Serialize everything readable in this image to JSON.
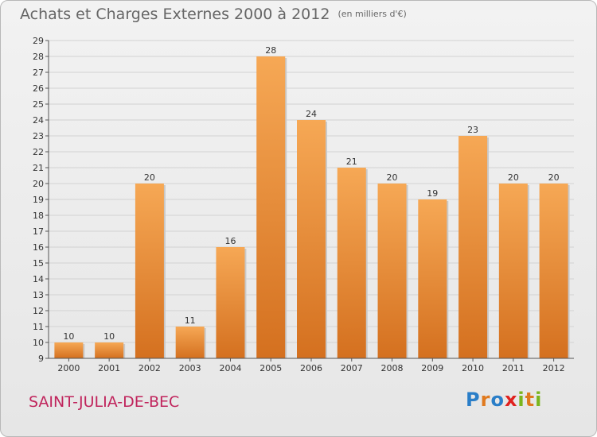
{
  "title": "Achats et Charges Externes 2000 à 2012",
  "subtitle": "(en milliers d'€)",
  "place": "SAINT-JULIA-DE-BEC",
  "logo": {
    "letters": [
      {
        "ch": "P",
        "color": "#2a7ec8"
      },
      {
        "ch": "r",
        "color": "#e07a1f"
      },
      {
        "ch": "o",
        "color": "#2a7ec8"
      },
      {
        "ch": "x",
        "color": "#e0221f"
      },
      {
        "ch": "i",
        "color": "#7ab51d"
      },
      {
        "ch": "t",
        "color": "#e07a1f"
      },
      {
        "ch": "i",
        "color": "#7ab51d"
      }
    ]
  },
  "colors": {
    "bar_top": "#f6a855",
    "bar_bottom": "#d4701f",
    "grid": "#d2d2d2"
  },
  "chart_data": {
    "type": "bar",
    "categories": [
      "2000",
      "2001",
      "2002",
      "2003",
      "2004",
      "2005",
      "2006",
      "2007",
      "2008",
      "2009",
      "2010",
      "2011",
      "2012"
    ],
    "values": [
      10,
      10,
      20,
      11,
      16,
      28,
      24,
      21,
      20,
      19,
      23,
      20,
      20
    ],
    "ylim": [
      9,
      29
    ],
    "yticks": [
      9,
      10,
      11,
      12,
      13,
      14,
      15,
      16,
      17,
      18,
      19,
      20,
      21,
      22,
      23,
      24,
      25,
      26,
      27,
      28,
      29
    ],
    "grid": true,
    "data_labels": true
  }
}
